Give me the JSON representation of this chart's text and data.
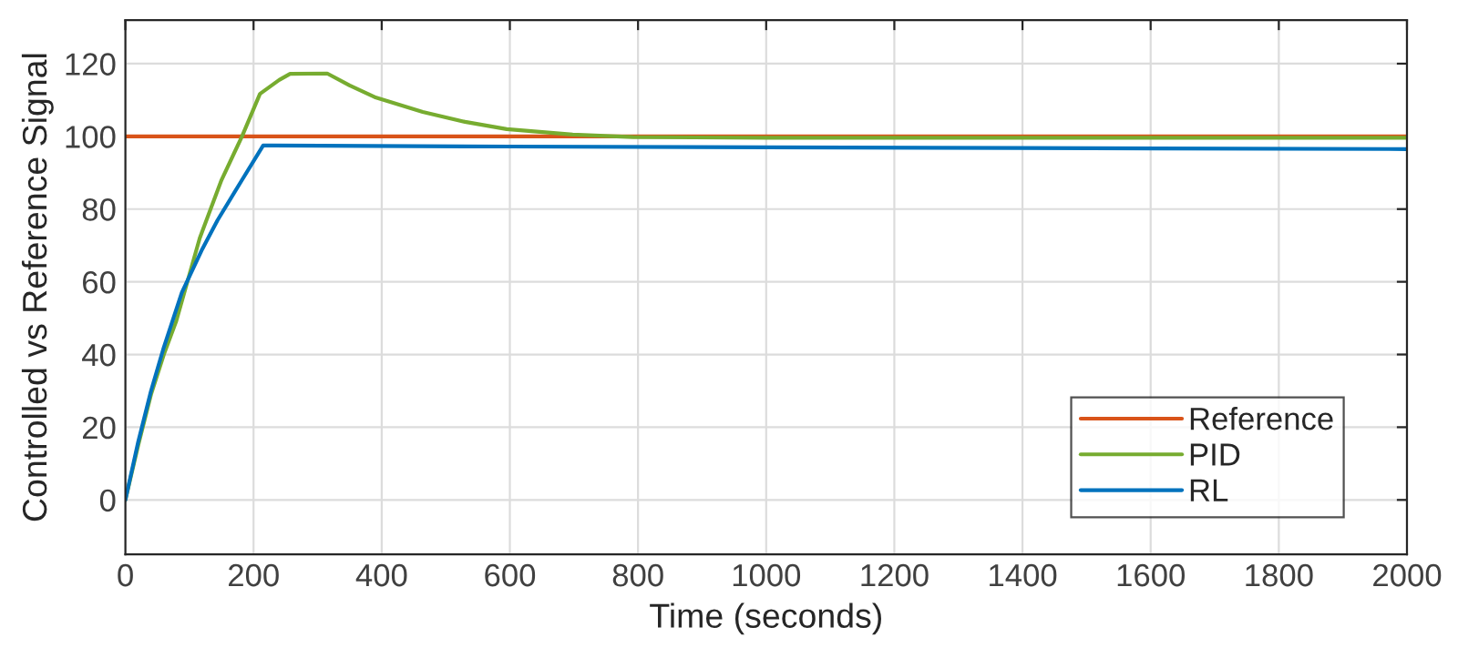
{
  "chart_data": {
    "type": "line",
    "xlabel": "Time (seconds)",
    "ylabel": "Controlled vs Reference Signal",
    "xlim": [
      0,
      2000
    ],
    "ylim": [
      -15,
      132
    ],
    "xticks": [
      0,
      200,
      400,
      600,
      800,
      1000,
      1200,
      1400,
      1600,
      1800,
      2000
    ],
    "yticks": [
      0,
      20,
      40,
      60,
      80,
      100,
      120
    ],
    "grid": true,
    "legend": "bottom right",
    "series": [
      {
        "name": "Reference",
        "color": "#d95319",
        "x": [
          0,
          2000
        ],
        "values": [
          100,
          100
        ]
      },
      {
        "name": "PID",
        "color": "#77ac30",
        "x": [
          0,
          20,
          40,
          60,
          79,
          116,
          150,
          182,
          210,
          240,
          257,
          315,
          350,
          389,
          464,
          530,
          595,
          698,
          792,
          1000,
          2000
        ],
        "values": [
          0,
          15,
          29,
          40,
          49,
          72,
          88,
          100,
          111.7,
          115.5,
          117.2,
          117.3,
          114,
          110.8,
          106.7,
          104,
          102,
          100.5,
          99.8,
          99.6,
          99.6
        ]
      },
      {
        "name": "RL",
        "color": "#0072bd",
        "x": [
          0,
          20,
          40,
          60,
          88,
          120,
          144,
          182,
          215,
          230,
          600,
          1000,
          1400,
          2000
        ],
        "values": [
          0,
          16,
          30,
          42,
          57,
          69,
          77,
          88,
          97.5,
          97.5,
          97.2,
          97,
          96.8,
          96.5
        ]
      }
    ]
  }
}
